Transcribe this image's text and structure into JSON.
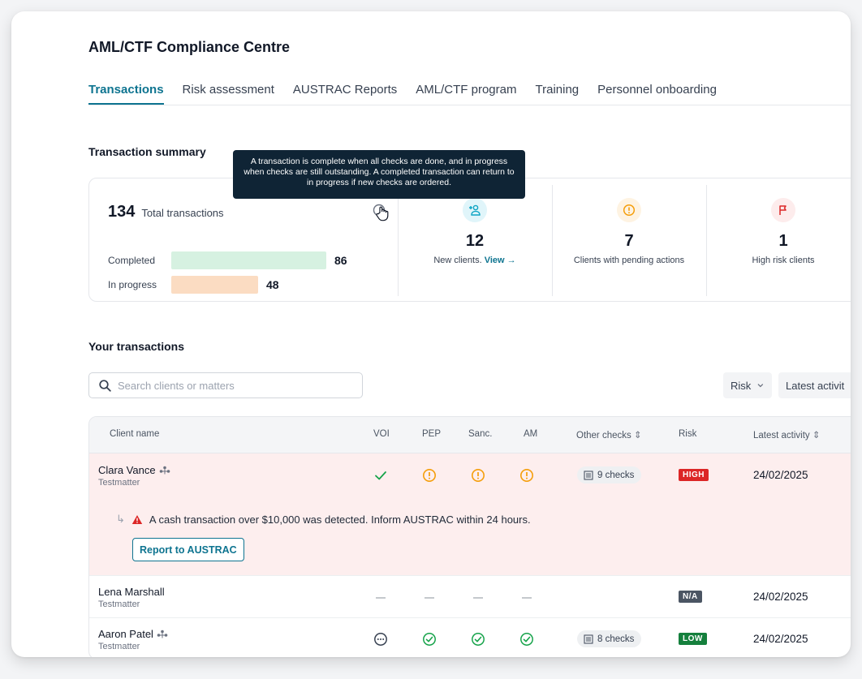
{
  "app": {
    "title": "AML/CTF Compliance Centre"
  },
  "tabs": [
    {
      "label": "Transactions",
      "active": true
    },
    {
      "label": "Risk assessment"
    },
    {
      "label": "AUSTRAC Reports"
    },
    {
      "label": "AML/CTF program"
    },
    {
      "label": "Training"
    },
    {
      "label": "Personnel onboarding"
    }
  ],
  "summary": {
    "title": "Transaction summary",
    "total": "134",
    "total_label": "Total transactions",
    "completed_label": "Completed",
    "completed_value": "86",
    "in_progress_label": "In progress",
    "in_progress_value": "48",
    "tooltip": "A transaction is complete when all checks are done, and in progress when checks are still outstanding. A completed transaction can return to in progress if new checks are ordered.",
    "stats": [
      {
        "value": "12",
        "label": "New clients.",
        "link": "View →",
        "icon": "add-user-icon",
        "color": "#0ea5c4"
      },
      {
        "value": "7",
        "label": "Clients with pending actions",
        "icon": "alert-circle-icon",
        "color": "#f59e0b"
      },
      {
        "value": "1",
        "label": "High risk clients",
        "icon": "flag-icon",
        "color": "#dc2626"
      }
    ]
  },
  "transactions": {
    "title": "Your transactions",
    "search_placeholder": "Search clients or matters",
    "filters": {
      "risk": "Risk",
      "latest": "Latest activit"
    },
    "columns": {
      "client": "Client name",
      "voi": "VOI",
      "pep": "PEP",
      "sanc": "Sanc.",
      "am": "AM",
      "other": "Other checks",
      "risk": "Risk",
      "latest": "Latest activity"
    },
    "rows": [
      {
        "name": "Clara Vance",
        "matter": "Testmatter",
        "checks": "9 checks",
        "risk": "HIGH",
        "date": "24/02/2025",
        "alert": "A cash transaction over $10,000 was detected. Inform AUSTRAC within 24 hours.",
        "action": "Report to AUSTRAC"
      },
      {
        "name": "Lena Marshall",
        "matter": "Testmatter",
        "risk": "N/A",
        "date": "24/02/2025"
      },
      {
        "name": "Aaron Patel",
        "matter": "Testmatter",
        "checks": "8 checks",
        "risk": "LOW",
        "date": "24/02/2025"
      }
    ]
  },
  "colors": {
    "accent": "#0e7490",
    "completed": "#d6f1e1",
    "in_progress": "#fbdcc2",
    "high": "#dc2626",
    "low": "#15803d",
    "na": "#4b5563"
  }
}
